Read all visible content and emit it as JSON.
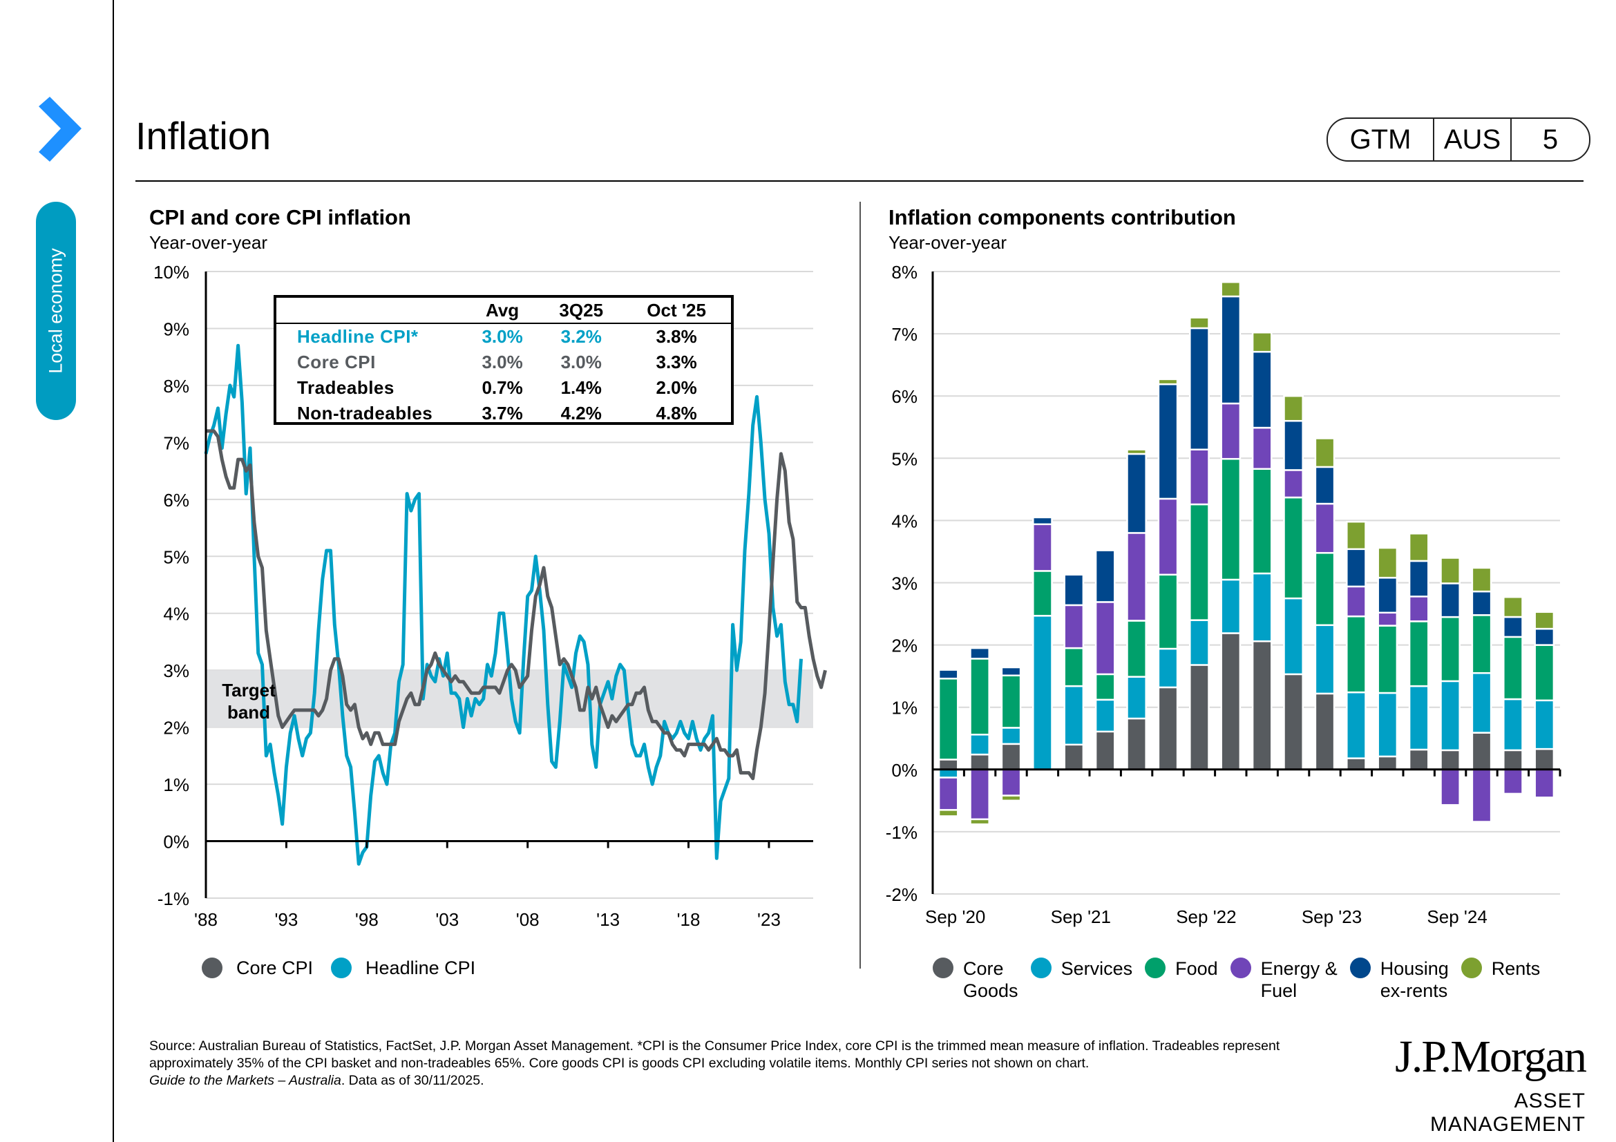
{
  "header": {
    "title": "Inflation",
    "badge": [
      "GTM",
      "AUS",
      "5"
    ],
    "section_tab": "Local economy",
    "nav_icon": "chevron-right-icon"
  },
  "colors": {
    "accent_blue": "#1e90ff",
    "tab_teal": "#009cc1",
    "core_cpi": "#575b5f",
    "headline_cpi": "#00a0c6",
    "core_goods": "#575b5f",
    "services": "#00a0c6",
    "food": "#00a06b",
    "energy_fuel": "#7045b8",
    "housing_ex_rents": "#00478c",
    "rents": "#7da030",
    "target_band": "#e1e2e4"
  },
  "stats_table": {
    "columns": [
      "",
      "Avg",
      "3Q25",
      "Oct '25"
    ],
    "rows": [
      {
        "label": "Headline CPI*",
        "values": [
          "3.0%",
          "3.2%",
          "3.8%"
        ],
        "style": "headline"
      },
      {
        "label": "Core CPI",
        "values": [
          "3.0%",
          "3.0%",
          "3.3%"
        ],
        "style": "core"
      },
      {
        "label": "Tradeables",
        "values": [
          "0.7%",
          "1.4%",
          "2.0%"
        ],
        "style": "plain"
      },
      {
        "label": "Non-tradeables",
        "values": [
          "3.7%",
          "4.2%",
          "4.8%"
        ],
        "style": "plain"
      }
    ]
  },
  "chart_data": [
    {
      "type": "line",
      "title": "CPI and core CPI inflation",
      "subtitle": "Year-over-year",
      "xlabel": "",
      "ylabel": "",
      "x_start": 1988.0,
      "x_step": 0.25,
      "xlim": [
        1988,
        2025.75
      ],
      "ylim": [
        -1,
        10
      ],
      "yticks": [
        "-1%",
        "0%",
        "1%",
        "2%",
        "3%",
        "4%",
        "5%",
        "6%",
        "7%",
        "8%",
        "9%",
        "10%"
      ],
      "xticks": [
        {
          "label": "'88",
          "x": 1988
        },
        {
          "label": "'93",
          "x": 1993
        },
        {
          "label": "'98",
          "x": 1998
        },
        {
          "label": "'03",
          "x": 2003
        },
        {
          "label": "'08",
          "x": 2008
        },
        {
          "label": "'13",
          "x": 2013
        },
        {
          "label": "'18",
          "x": 2018
        },
        {
          "label": "'23",
          "x": 2023
        }
      ],
      "grid": true,
      "annotations": [
        {
          "text": "Target band",
          "y_range": [
            2,
            3
          ]
        }
      ],
      "legend_position": "bottom-left",
      "series": [
        {
          "name": "Core CPI",
          "values": [
            7.2,
            7.2,
            7.2,
            7.1,
            6.7,
            6.4,
            6.2,
            6.2,
            6.7,
            6.7,
            6.5,
            6.6,
            5.6,
            5.0,
            4.8,
            3.7,
            3.2,
            2.7,
            2.2,
            2.0,
            2.1,
            2.2,
            2.3,
            2.3,
            2.3,
            2.3,
            2.3,
            2.3,
            2.2,
            2.3,
            2.5,
            3.0,
            3.2,
            3.2,
            2.9,
            2.4,
            2.3,
            2.4,
            2.0,
            1.8,
            1.9,
            1.7,
            1.9,
            1.9,
            1.7,
            1.7,
            1.7,
            1.7,
            2.1,
            2.3,
            2.5,
            2.6,
            2.4,
            2.4,
            2.7,
            3.0,
            3.1,
            3.3,
            3.1,
            3.0,
            2.9,
            2.8,
            2.9,
            2.8,
            2.8,
            2.7,
            2.6,
            2.6,
            2.6,
            2.7,
            2.7,
            2.7,
            2.7,
            2.6,
            2.8,
            3.0,
            3.1,
            3.0,
            2.7,
            2.8,
            2.9,
            3.7,
            4.3,
            4.5,
            4.8,
            4.3,
            4.1,
            3.6,
            3.1,
            3.2,
            3.1,
            2.9,
            2.7,
            2.3,
            2.3,
            2.7,
            2.5,
            2.7,
            2.4,
            2.2,
            2.0,
            2.2,
            2.1,
            2.2,
            2.3,
            2.4,
            2.4,
            2.6,
            2.6,
            2.7,
            2.3,
            2.1,
            2.1,
            2.0,
            1.9,
            1.9,
            1.7,
            1.6,
            1.6,
            1.5,
            1.7,
            1.7,
            1.7,
            1.7,
            1.7,
            1.6,
            1.7,
            1.8,
            1.6,
            1.6,
            1.5,
            1.5,
            1.6,
            1.2,
            1.2,
            1.2,
            1.1,
            1.6,
            2.0,
            2.6,
            3.7,
            4.9,
            6.0,
            6.8,
            6.5,
            5.6,
            5.3,
            4.2,
            4.1,
            4.1,
            3.6,
            3.2,
            2.9,
            2.7,
            3.0
          ]
        },
        {
          "name": "Headline CPI",
          "values": [
            6.8,
            7.1,
            7.3,
            7.6,
            6.9,
            7.5,
            8.0,
            7.8,
            8.7,
            7.7,
            6.1,
            6.9,
            5.0,
            3.3,
            3.1,
            1.5,
            1.7,
            1.2,
            0.8,
            0.3,
            1.3,
            1.9,
            2.2,
            1.8,
            1.5,
            1.8,
            1.9,
            2.6,
            3.7,
            4.6,
            5.1,
            5.1,
            3.8,
            3.1,
            2.2,
            1.5,
            1.3,
            0.5,
            -0.4,
            -0.2,
            -0.1,
            0.8,
            1.4,
            1.5,
            1.2,
            1.0,
            1.7,
            1.9,
            2.8,
            3.1,
            6.1,
            5.8,
            6.0,
            6.1,
            2.5,
            3.1,
            2.9,
            2.8,
            3.2,
            2.9,
            3.3,
            2.6,
            2.6,
            2.5,
            2.0,
            2.5,
            2.2,
            2.5,
            2.4,
            2.5,
            3.1,
            2.9,
            3.3,
            4.0,
            4.0,
            3.3,
            2.5,
            2.1,
            1.9,
            3.2,
            4.3,
            4.4,
            5.0,
            4.4,
            3.7,
            2.4,
            1.4,
            1.3,
            2.1,
            3.1,
            2.9,
            2.7,
            3.3,
            3.6,
            3.5,
            3.1,
            1.7,
            1.3,
            2.4,
            2.6,
            2.8,
            2.5,
            2.9,
            3.1,
            3.0,
            2.3,
            1.7,
            1.5,
            1.5,
            1.7,
            1.3,
            1.0,
            1.3,
            1.5,
            2.1,
            1.9,
            1.8,
            1.9,
            2.1,
            1.9,
            1.8,
            2.1,
            1.8,
            1.6,
            1.8,
            1.9,
            2.2,
            -0.3,
            0.7,
            0.9,
            1.1,
            3.8,
            3.0,
            3.5,
            5.1,
            6.1,
            7.3,
            7.8,
            7.0,
            6.0,
            5.4,
            4.1,
            3.6,
            3.8,
            2.8,
            2.4,
            2.4,
            2.1,
            3.2
          ]
        }
      ]
    },
    {
      "type": "bar",
      "stacked": true,
      "title": "Inflation components contribution",
      "subtitle": "Year-over-year",
      "xlabel": "",
      "ylabel": "",
      "ylim": [
        -2,
        8
      ],
      "yticks": [
        "-2%",
        "-1%",
        "0%",
        "1%",
        "2%",
        "3%",
        "4%",
        "5%",
        "6%",
        "7%",
        "8%"
      ],
      "grid": true,
      "legend_position": "bottom",
      "categories": [
        "Sep '20",
        "Dec '20",
        "Mar '21",
        "Jun '21",
        "Sep '21",
        "Dec '21",
        "Mar '22",
        "Jun '22",
        "Sep '22",
        "Dec '22",
        "Mar '23",
        "Jun '23",
        "Sep '23",
        "Dec '23",
        "Mar '24",
        "Jun '24",
        "Sep '24",
        "Dec '24",
        "Mar '25",
        "Jun '25"
      ],
      "tick_labels": [
        {
          "label": "Sep '20",
          "index": 0
        },
        {
          "label": "Sep '21",
          "index": 4
        },
        {
          "label": "Sep '22",
          "index": 8
        },
        {
          "label": "Sep '23",
          "index": 12
        },
        {
          "label": "Sep '24",
          "index": 16
        }
      ],
      "series": [
        {
          "name": "Core Goods",
          "legend": [
            "Core",
            "Goods"
          ],
          "color_key": "core_goods",
          "values": [
            0.16,
            0.24,
            0.41,
            0.0,
            0.4,
            0.61,
            0.82,
            1.32,
            1.68,
            2.19,
            2.06,
            1.53,
            1.22,
            0.18,
            0.21,
            0.32,
            0.31,
            0.59,
            0.31,
            0.33
          ]
        },
        {
          "name": "Services",
          "legend": [
            "Services"
          ],
          "color_key": "services",
          "values": [
            -0.13,
            0.32,
            0.26,
            2.47,
            0.94,
            0.51,
            0.67,
            0.62,
            0.72,
            0.86,
            1.09,
            1.22,
            1.1,
            1.06,
            1.02,
            1.02,
            1.11,
            0.96,
            0.82,
            0.78
          ]
        },
        {
          "name": "Food",
          "legend": [
            "Food"
          ],
          "color_key": "food",
          "values": [
            1.3,
            1.22,
            0.84,
            0.72,
            0.61,
            0.41,
            0.9,
            1.19,
            1.86,
            1.94,
            1.68,
            1.62,
            1.16,
            1.22,
            1.08,
            1.04,
            1.03,
            0.93,
            1.0,
            0.89
          ]
        },
        {
          "name": "Energy & Fuel",
          "legend": [
            "Energy &",
            "Fuel"
          ],
          "color_key": "energy_fuel",
          "values": [
            -0.52,
            -0.8,
            -0.42,
            0.75,
            0.69,
            1.16,
            1.41,
            1.22,
            0.88,
            0.89,
            0.66,
            0.44,
            0.79,
            0.48,
            0.21,
            0.4,
            -0.57,
            -0.84,
            -0.39,
            -0.45
          ]
        },
        {
          "name": "Housing ex-rents",
          "legend": [
            "Housing",
            "ex-rents"
          ],
          "color_key": "housing_ex_rents",
          "values": [
            0.14,
            0.17,
            0.13,
            0.11,
            0.49,
            0.83,
            1.27,
            1.84,
            1.95,
            1.72,
            1.22,
            0.79,
            0.59,
            0.6,
            0.56,
            0.57,
            0.54,
            0.38,
            0.32,
            0.26
          ]
        },
        {
          "name": "Rents",
          "legend": [
            "Rents"
          ],
          "color_key": "rents",
          "values": [
            -0.1,
            -0.08,
            -0.08,
            0.0,
            0.0,
            0.0,
            0.07,
            0.08,
            0.17,
            0.23,
            0.31,
            0.4,
            0.46,
            0.44,
            0.48,
            0.44,
            0.41,
            0.38,
            0.32,
            0.27
          ]
        }
      ]
    }
  ],
  "footer": {
    "source": "Source: Australian Bureau of Statistics, FactSet, J.P. Morgan Asset Management. *CPI is the Consumer Price Index, core CPI is the trimmed mean measure of inflation. Tradeables represent approximately 35% of the CPI basket and non-tradeables 65%. Core goods CPI is goods CPI excluding volatile items. Monthly CPI series not shown on chart.",
    "guide_title": "Guide to the Markets – Australia",
    "as_of": ". Data as of 30/11/2025."
  },
  "logo": {
    "line1": "J.P.Morgan",
    "line2": "ASSET MANAGEMENT"
  }
}
